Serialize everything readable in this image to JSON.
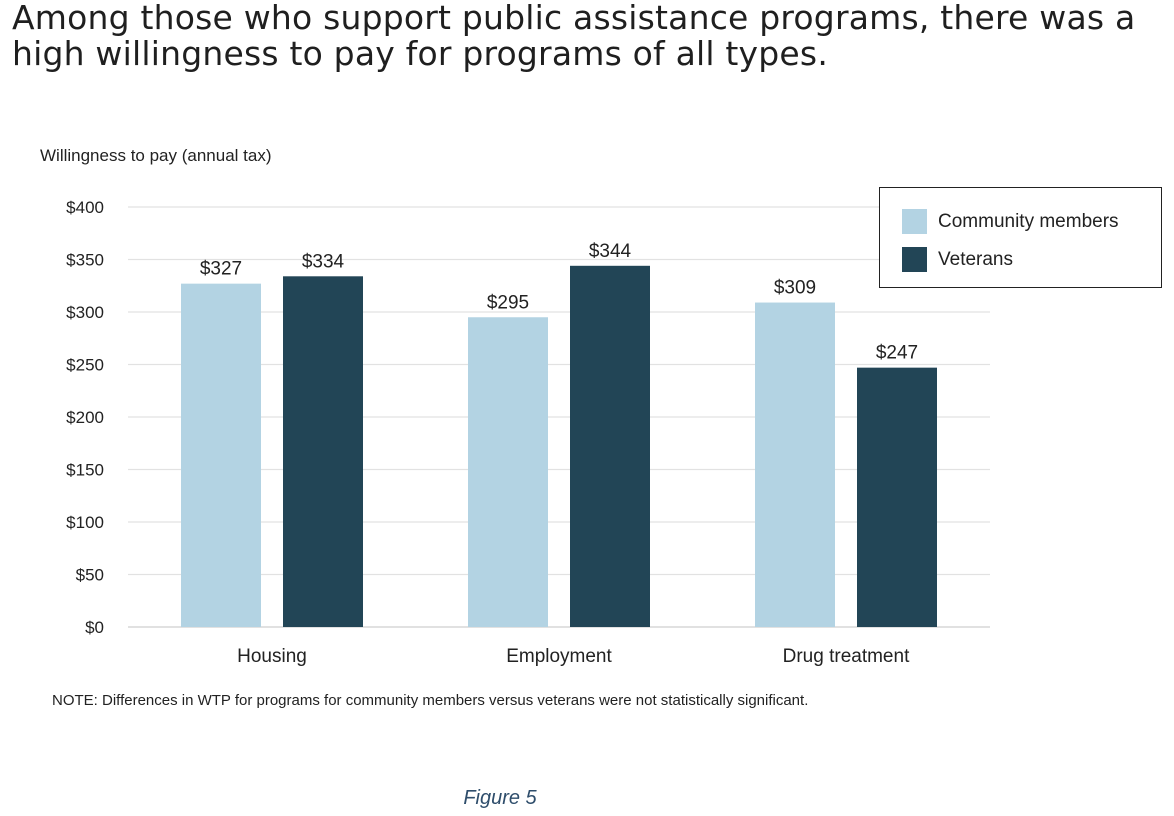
{
  "headline": "Among those who support public assistance programs, there was a high willingness to pay for programs of all types.",
  "note": "NOTE: Differences in WTP for programs for community members versus veterans were not statistically significant.",
  "caption": "Figure 5",
  "chart_data": {
    "type": "bar",
    "title": "",
    "ylabel": "Willingness to pay (annual tax)",
    "xlabel": "",
    "categories": [
      "Housing",
      "Employment",
      "Drug treatment"
    ],
    "series": [
      {
        "name": "Community members",
        "values": [
          327,
          295,
          309
        ],
        "labels": [
          "$327",
          "$295",
          "$309"
        ],
        "color": "#b3d3e3"
      },
      {
        "name": "Veterans",
        "values": [
          334,
          344,
          247
        ],
        "labels": [
          "$334",
          "$344",
          "$247"
        ],
        "color": "#224556"
      }
    ],
    "ylim": [
      0,
      400
    ],
    "yticks": [
      0,
      50,
      100,
      150,
      200,
      250,
      300,
      350,
      400
    ],
    "ytick_labels": [
      "$0",
      "$50",
      "$100",
      "$150",
      "$200",
      "$250",
      "$300",
      "$350",
      "$400"
    ],
    "grid": true,
    "legend_position": "top-right"
  }
}
